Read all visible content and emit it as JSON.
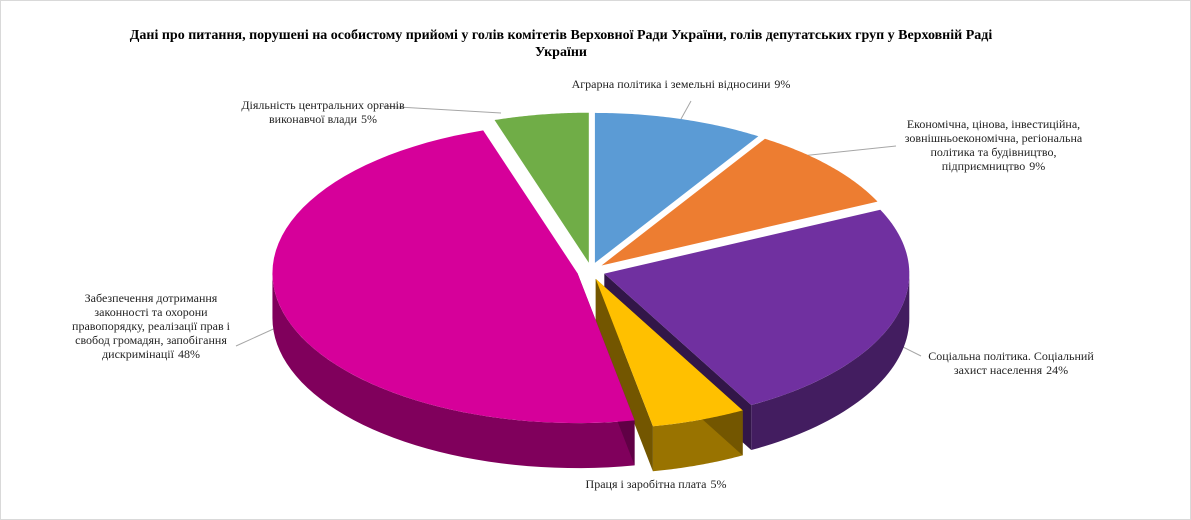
{
  "chart_data": {
    "type": "pie",
    "title": "Дані про питання, порушені  на особистому прийомі  у голів комітетів Верховної Ради України, голів депутатських груп у Верховній Раді  України",
    "categories": [
      "Аграрна політика  і земельні відносини",
      "Економічна, цінова, інвестиційна, зовнішньоекономічна, регіональна політика  та будівництво, підприємництво",
      "Соціальна політика.  Соціальний захист населення",
      "Праця і заробітна плата",
      "Забезпечення дотримання законності та охорони правопорядку, реалізації  прав і свобод громадян, запобігання дискримінації",
      "Діяльність  центральних  органів виконавчої влади"
    ],
    "values": [
      9,
      9,
      24,
      5,
      48,
      5
    ],
    "value_labels": [
      "9%",
      "9%",
      "24%",
      "5%",
      "48%",
      "5%"
    ],
    "colors": [
      "#5b9bd5",
      "#ed7d31",
      "#7030a0",
      "#ffc000",
      "#d6009a",
      "#70ad47"
    ]
  }
}
